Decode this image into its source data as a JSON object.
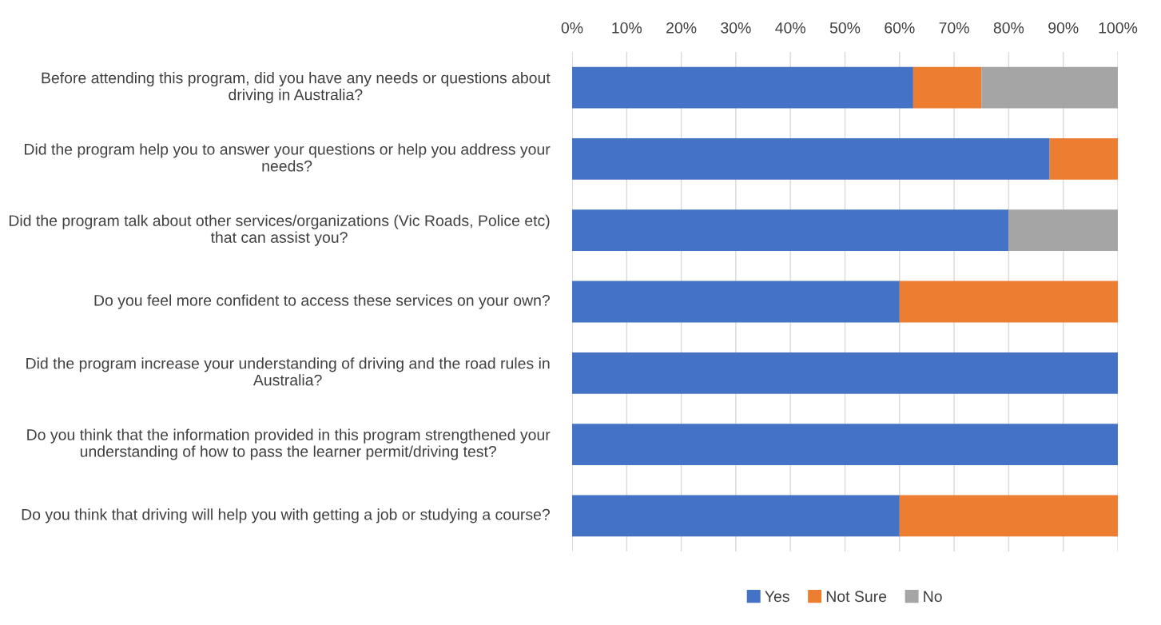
{
  "chart_data": {
    "type": "bar",
    "orientation": "horizontal",
    "stacked": true,
    "categories": [
      "Before attending this program, did you have any needs or questions about driving in Australia?",
      "Did the program help you to answer your questions or help you address your needs?",
      "Did the program talk about other services/organizations (Vic Roads, Police etc) that can assist you?",
      "Do you feel more confident to access these services on your own?",
      "Did the program increase your understanding of driving and the road rules in Australia?",
      "Do you think that the information provided in this program strengthened your understanding of how to pass the learner permit/driving test?",
      "Do you think that driving will help you with getting a job or studying a course?"
    ],
    "series": [
      {
        "name": "Yes",
        "color": "#4472c4",
        "values": [
          62.5,
          87.5,
          80,
          60,
          100,
          100,
          60
        ]
      },
      {
        "name": "Not Sure",
        "color": "#ed7d31",
        "values": [
          12.5,
          12.5,
          0,
          40,
          0,
          0,
          40
        ]
      },
      {
        "name": "No",
        "color": "#a5a5a5",
        "values": [
          25,
          0,
          20,
          0,
          0,
          0,
          0
        ]
      }
    ],
    "xlim": [
      0,
      100
    ],
    "xticks": [
      {
        "value": 0,
        "label": "0%"
      },
      {
        "value": 10,
        "label": "10%"
      },
      {
        "value": 20,
        "label": "20%"
      },
      {
        "value": 30,
        "label": "30%"
      },
      {
        "value": 40,
        "label": "40%"
      },
      {
        "value": 50,
        "label": "50%"
      },
      {
        "value": 60,
        "label": "60%"
      },
      {
        "value": 70,
        "label": "70%"
      },
      {
        "value": 80,
        "label": "80%"
      },
      {
        "value": 90,
        "label": "90%"
      },
      {
        "value": 100,
        "label": "100%"
      }
    ],
    "grid": "x",
    "legend": "bottom"
  }
}
